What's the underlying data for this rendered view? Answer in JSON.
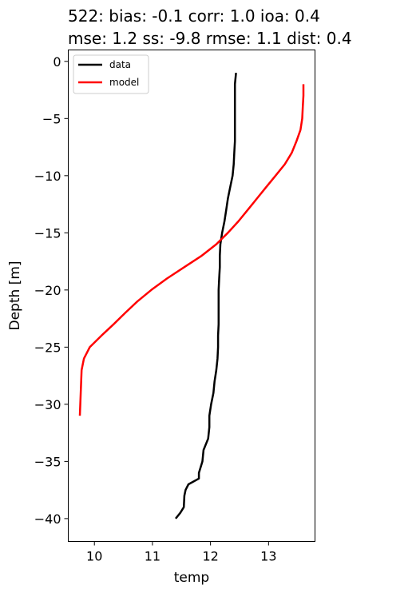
{
  "chart_data": {
    "type": "line",
    "title_line1": "522: bias: -0.1  corr: 1.0  ioa: 0.4",
    "title_line2": "mse: 1.2  ss: -9.8  rmse: 1.1  dist: 0.4",
    "xlabel": "temp",
    "ylabel": "Depth [m]",
    "xlim": [
      9.55,
      13.8
    ],
    "ylim": [
      -42,
      1
    ],
    "xticks": [
      10,
      11,
      12,
      13
    ],
    "yticks": [
      0,
      -5,
      -10,
      -15,
      -20,
      -25,
      -30,
      -35,
      -40
    ],
    "xtick_labels": [
      "10",
      "11",
      "12",
      "13"
    ],
    "ytick_labels": [
      "0",
      "−5",
      "−10",
      "−15",
      "−20",
      "−25",
      "−30",
      "−35",
      "−40"
    ],
    "legend": {
      "position": "top-left",
      "entries": [
        "data",
        "model"
      ]
    },
    "series": [
      {
        "name": "data",
        "color": "#000000",
        "x": [
          12.44,
          12.42,
          12.42,
          12.42,
          12.42,
          12.41,
          12.4,
          12.38,
          12.34,
          12.3,
          12.27,
          12.24,
          12.2,
          12.17,
          12.16,
          12.16,
          12.15,
          12.14,
          12.14,
          12.14,
          12.14,
          12.13,
          12.13,
          12.12,
          12.1,
          12.07,
          12.05,
          12.01,
          11.98,
          11.98,
          11.96,
          11.88,
          11.86,
          11.8,
          11.8,
          11.62,
          11.57,
          11.55,
          11.54,
          11.48,
          11.4
        ],
        "y": [
          -1,
          -2,
          -3,
          -5,
          -7,
          -8,
          -9,
          -10,
          -11,
          -12,
          -13,
          -14,
          -15,
          -16,
          -17,
          -18,
          -19,
          -20,
          -21,
          -22,
          -23,
          -24,
          -25,
          -26,
          -27,
          -28,
          -29,
          -30,
          -31,
          -32,
          -33,
          -34,
          -35,
          -36,
          -36.5,
          -37,
          -37.5,
          -38,
          -39,
          -39.5,
          -40
        ]
      },
      {
        "name": "model",
        "color": "#ff0000",
        "x": [
          13.6,
          13.6,
          13.59,
          13.58,
          13.55,
          13.48,
          13.4,
          13.28,
          13.12,
          12.96,
          12.8,
          12.64,
          12.48,
          12.3,
          12.1,
          11.85,
          11.55,
          11.25,
          10.98,
          10.74,
          10.53,
          10.33,
          10.12,
          9.92,
          9.82,
          9.78,
          9.75
        ],
        "y": [
          -2,
          -3,
          -4,
          -5,
          -6,
          -7,
          -8,
          -9,
          -10,
          -11,
          -12,
          -13,
          -14,
          -15,
          -16,
          -17,
          -18,
          -19,
          -20,
          -21,
          -22,
          -23,
          -24,
          -25,
          -26,
          -27,
          -31
        ]
      }
    ]
  }
}
